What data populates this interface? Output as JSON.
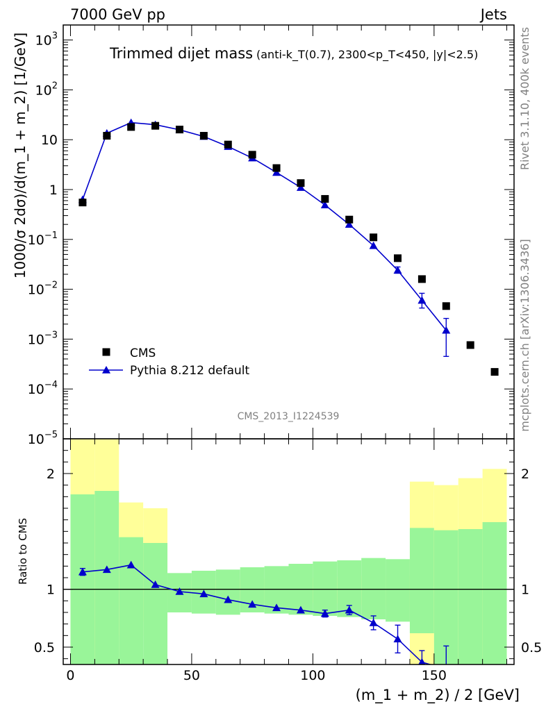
{
  "header": {
    "left": "7000 GeV pp",
    "right": "Jets"
  },
  "side": {
    "rivet": "Rivet 3.1.10,  400k events",
    "mcplots": "mcplots.cern.ch [arXiv:1306.3436]"
  },
  "colors": {
    "data": "#000000",
    "mc": "#0000cc",
    "band_inner": "#99f599",
    "band_outer": "#ffff99"
  },
  "chart_data": [
    {
      "type": "scatter",
      "title": "Trimmed dijet mass",
      "subtitle": "(anti-k_T(0.7), 2300<p_T<450, |y|<2.5)",
      "ylabel": "1000/σ 2dσ)/d(m_1 + m_2) [1/GeV]",
      "yscale": "log",
      "ylim": [
        1e-05,
        2000
      ],
      "xlim": [
        -3,
        183
      ],
      "watermark": "CMS_2013_I1224539",
      "yticks": [
        {
          "v": 1000,
          "base": "10",
          "exp": "3"
        },
        {
          "v": 100,
          "base": "10",
          "exp": "2"
        },
        {
          "v": 10,
          "base": "10",
          "exp": ""
        },
        {
          "v": 1,
          "base": "1",
          "exp": ""
        },
        {
          "v": 0.1,
          "base": "10",
          "exp": "−1"
        },
        {
          "v": 0.01,
          "base": "10",
          "exp": "−2"
        },
        {
          "v": 0.001,
          "base": "10",
          "exp": "−3"
        },
        {
          "v": 0.0001,
          "base": "10",
          "exp": "−4"
        },
        {
          "v": 1e-05,
          "base": "10",
          "exp": "−5"
        }
      ],
      "legend": {
        "placement": "bottom-left",
        "entries": [
          "CMS",
          "Pythia 8.212 default"
        ]
      },
      "series": [
        {
          "name": "CMS",
          "x": [
            5,
            15,
            25,
            35,
            45,
            55,
            65,
            75,
            85,
            95,
            105,
            115,
            125,
            135,
            145,
            155,
            165,
            175
          ],
          "y": [
            0.55,
            12,
            18,
            19,
            16,
            12,
            8,
            5,
            2.7,
            1.35,
            0.65,
            0.25,
            0.11,
            0.042,
            0.016,
            0.0046,
            0.00076,
            0.00022
          ]
        },
        {
          "name": "Pythia 8.212 default",
          "x": [
            5,
            15,
            25,
            35,
            45,
            55,
            65,
            75,
            85,
            95,
            105,
            115,
            125,
            135,
            145,
            155
          ],
          "y": [
            0.63,
            13.5,
            22,
            20,
            15.8,
            11.6,
            7.3,
            4.3,
            2.2,
            1.1,
            0.49,
            0.2,
            0.075,
            0.024,
            0.006,
            0.0015
          ],
          "err_low": [
            0.03,
            0.4,
            0.5,
            0.4,
            0.3,
            0.2,
            0.15,
            0.08,
            0.05,
            0.03,
            0.015,
            0.008,
            0.004,
            0.003,
            0.0018,
            0.00105
          ],
          "err_high": [
            0.03,
            0.4,
            0.5,
            0.4,
            0.3,
            0.2,
            0.15,
            0.08,
            0.05,
            0.03,
            0.015,
            0.008,
            0.004,
            0.004,
            0.0023,
            0.0011
          ]
        }
      ]
    },
    {
      "type": "line",
      "xlabel": "(m_1 + m_2) / 2 [GeV]",
      "ylabel": "Ratio to CMS",
      "ylim": [
        0.35,
        2.3
      ],
      "xlim": [
        -3,
        183
      ],
      "xticks": [
        0,
        50,
        100,
        150
      ],
      "yticks": [
        0.5,
        1,
        2
      ],
      "bands": {
        "edges": [
          0,
          10,
          20,
          30,
          40,
          50,
          60,
          70,
          80,
          90,
          100,
          110,
          120,
          130,
          140,
          150,
          160,
          170,
          180
        ],
        "inner_low": [
          0.35,
          0.35,
          0.35,
          0.35,
          0.8,
          0.79,
          0.78,
          0.8,
          0.79,
          0.78,
          0.77,
          0.76,
          0.74,
          0.72,
          0.62,
          0.35,
          0.35,
          0.35
        ],
        "inner_high": [
          1.82,
          1.85,
          1.45,
          1.4,
          1.14,
          1.16,
          1.17,
          1.19,
          1.2,
          1.22,
          1.24,
          1.25,
          1.27,
          1.26,
          1.53,
          1.51,
          1.52,
          1.58
        ],
        "outer_low": [
          0.35,
          0.35,
          0.6,
          0.72,
          0.91,
          0.9,
          0.89,
          0.9,
          0.89,
          0.89,
          0.88,
          0.88,
          0.86,
          0.85,
          0.35,
          0.35,
          0.35,
          0.35
        ],
        "outer_high": [
          2.3,
          2.3,
          1.75,
          1.7,
          1.07,
          1.07,
          1.08,
          1.09,
          1.09,
          1.1,
          1.1,
          1.11,
          1.12,
          1.12,
          1.93,
          1.9,
          1.96,
          2.04
        ]
      },
      "series": [
        {
          "name": "Pythia 8.212 default",
          "x": [
            5,
            15,
            25,
            35,
            45,
            55,
            65,
            75,
            85,
            95,
            105,
            115,
            125,
            135,
            145,
            155
          ],
          "y": [
            1.15,
            1.17,
            1.21,
            1.04,
            0.98,
            0.96,
            0.91,
            0.87,
            0.84,
            0.82,
            0.79,
            0.82,
            0.71,
            0.57,
            0.37,
            0.31
          ],
          "err_low": [
            0.03,
            0.02,
            0.02,
            0.02,
            0.015,
            0.015,
            0.015,
            0.015,
            0.015,
            0.02,
            0.03,
            0.04,
            0.06,
            0.12,
            0.1,
            0.2
          ],
          "err_high": [
            0.03,
            0.02,
            0.02,
            0.02,
            0.015,
            0.015,
            0.015,
            0.015,
            0.015,
            0.02,
            0.03,
            0.04,
            0.06,
            0.12,
            0.1,
            0.2
          ]
        }
      ]
    }
  ]
}
